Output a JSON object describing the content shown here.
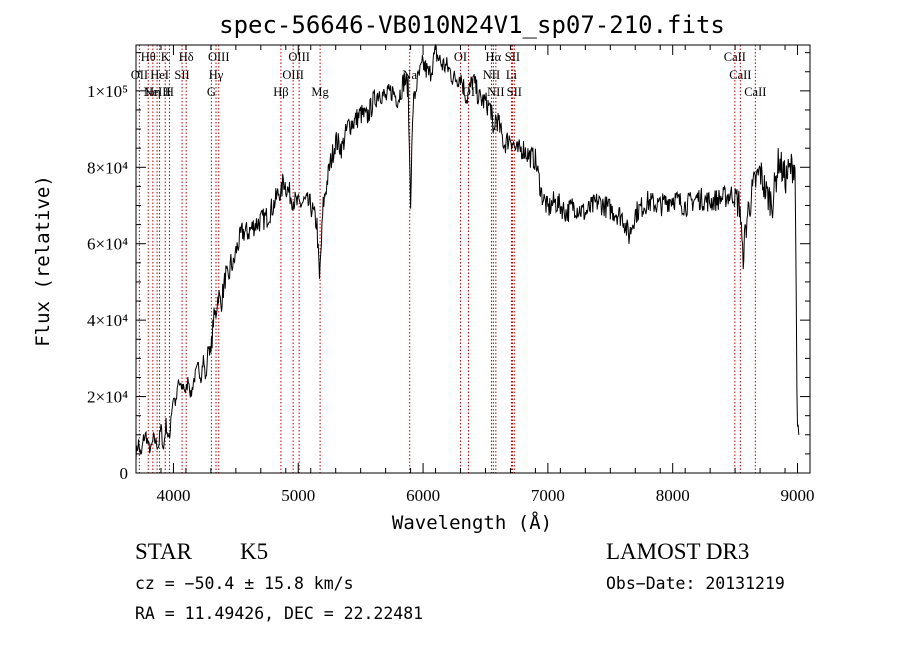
{
  "chart_data": {
    "type": "line",
    "title": "spec-56646-VB010N24V1_sp07-210.fits",
    "xlabel": "Wavelength (Å)",
    "ylabel": "Flux (relative)",
    "xlim": [
      3700,
      9100
    ],
    "ylim": [
      0,
      112000
    ],
    "x_ticks": [
      {
        "value": 4000,
        "label": "4000"
      },
      {
        "value": 5000,
        "label": "5000"
      },
      {
        "value": 6000,
        "label": "6000"
      },
      {
        "value": 7000,
        "label": "7000"
      },
      {
        "value": 8000,
        "label": "8000"
      },
      {
        "value": 9000,
        "label": "9000"
      }
    ],
    "y_ticks": [
      {
        "value": 0,
        "label": "0"
      },
      {
        "value": 20000,
        "label": "2×10⁴"
      },
      {
        "value": 40000,
        "label": "4×10⁴"
      },
      {
        "value": 60000,
        "label": "6×10⁴"
      },
      {
        "value": 80000,
        "label": "8×10⁴"
      },
      {
        "value": 100000,
        "label": "1×10⁵"
      }
    ],
    "series": [
      {
        "name": "spectrum",
        "x": [
          3700,
          3720,
          3740,
          3760,
          3780,
          3800,
          3820,
          3840,
          3860,
          3880,
          3900,
          3920,
          3940,
          3960,
          3970,
          3980,
          4000,
          4020,
          4040,
          4060,
          4080,
          4100,
          4120,
          4140,
          4160,
          4180,
          4200,
          4220,
          4240,
          4260,
          4280,
          4300,
          4320,
          4340,
          4360,
          4380,
          4400,
          4420,
          4440,
          4460,
          4480,
          4500,
          4550,
          4600,
          4650,
          4700,
          4750,
          4800,
          4850,
          4860,
          4880,
          4900,
          4950,
          5000,
          5050,
          5100,
          5150,
          5170,
          5180,
          5200,
          5250,
          5300,
          5350,
          5400,
          5450,
          5500,
          5550,
          5600,
          5650,
          5700,
          5750,
          5800,
          5850,
          5880,
          5890,
          5900,
          5920,
          5950,
          6000,
          6050,
          6100,
          6150,
          6200,
          6250,
          6300,
          6350,
          6400,
          6450,
          6500,
          6550,
          6560,
          6580,
          6600,
          6650,
          6700,
          6750,
          6800,
          6850,
          6900,
          6950,
          7000,
          7050,
          7100,
          7150,
          7200,
          7300,
          7400,
          7500,
          7600,
          7650,
          7700,
          7800,
          7900,
          8000,
          8100,
          8200,
          8300,
          8400,
          8480,
          8500,
          8540,
          8560,
          8600,
          8650,
          8700,
          8750,
          8800,
          8850,
          8900,
          8950,
          8980,
          9000,
          9010
        ],
        "values": [
          5000,
          8000,
          4000,
          9000,
          10000,
          7000,
          6000,
          9000,
          8000,
          7000,
          12000,
          6000,
          13000,
          9000,
          9000,
          15000,
          20000,
          18000,
          24000,
          22000,
          23000,
          21000,
          25000,
          20000,
          24000,
          26000,
          28000,
          25000,
          30000,
          24000,
          34000,
          31000,
          40000,
          42000,
          47000,
          44000,
          48000,
          52000,
          50000,
          55000,
          54000,
          58000,
          63000,
          63000,
          65000,
          66000,
          67000,
          70000,
          74000,
          72000,
          77000,
          75000,
          72000,
          70000,
          71000,
          70000,
          65000,
          50000,
          57000,
          70000,
          80000,
          87000,
          85000,
          91000,
          92000,
          94000,
          93000,
          97000,
          100000,
          98000,
          100000,
          98000,
          103000,
          101000,
          85000,
          72000,
          96000,
          102000,
          107000,
          104000,
          110000,
          107000,
          106000,
          103000,
          104000,
          98000,
          103000,
          98000,
          97000,
          95000,
          87000,
          93000,
          92000,
          86000,
          88000,
          84000,
          85000,
          83000,
          82000,
          73000,
          69000,
          71000,
          70000,
          68000,
          70000,
          68000,
          71000,
          69000,
          67000,
          62000,
          68000,
          71000,
          70000,
          72000,
          70000,
          72000,
          71000,
          72000,
          73000,
          72000,
          70000,
          56000,
          68000,
          75000,
          79000,
          73000,
          71000,
          82000,
          77000,
          80000,
          81000,
          8000,
          10000
        ]
      }
    ],
    "emission_lines": [
      {
        "wl": 3727,
        "label": "OII",
        "row": 1
      },
      {
        "wl": 3798,
        "label": "Hθ",
        "row": 0
      },
      {
        "wl": 3835,
        "label": "Hη",
        "row": 2
      },
      {
        "wl": 3869,
        "label": "NeIII",
        "row": 2
      },
      {
        "wl": 3889,
        "label": "HeI",
        "row": 1
      },
      {
        "wl": 3934,
        "label": "K",
        "row": 0
      },
      {
        "wl": 3968,
        "label": "H",
        "row": 2
      },
      {
        "wl": 4069,
        "label": "SII",
        "row": 1
      },
      {
        "wl": 4102,
        "label": "Hδ",
        "row": 0
      },
      {
        "wl": 4304,
        "label": "G",
        "row": 2
      },
      {
        "wl": 4341,
        "label": "Hγ",
        "row": 1
      },
      {
        "wl": 4363,
        "label": "OIII",
        "row": 0
      },
      {
        "wl": 4861,
        "label": "Hβ",
        "row": 2
      },
      {
        "wl": 4959,
        "label": "OIII",
        "row": 1
      },
      {
        "wl": 5007,
        "label": "OIII",
        "row": 0
      },
      {
        "wl": 5175,
        "label": "Mg",
        "row": 2
      },
      {
        "wl": 5893,
        "label": "Na",
        "row": 1
      },
      {
        "wl": 6300,
        "label": "OI",
        "row": 0
      },
      {
        "wl": 6364,
        "label": "OI",
        "row": 2
      },
      {
        "wl": 6548,
        "label": "NII",
        "row": 1
      },
      {
        "wl": 6563,
        "label": "Hα",
        "row": 0
      },
      {
        "wl": 6583,
        "label": "NII",
        "row": 2
      },
      {
        "wl": 6708,
        "label": "Li",
        "row": 1
      },
      {
        "wl": 6716,
        "label": "SII",
        "row": 0
      },
      {
        "wl": 6731,
        "label": "SII",
        "row": 2
      },
      {
        "wl": 8498,
        "label": "CaII",
        "row": 0
      },
      {
        "wl": 8542,
        "label": "CaII",
        "row": 1
      },
      {
        "wl": 8662,
        "label": "CaII",
        "row": 2
      }
    ]
  },
  "info": {
    "class": "STAR",
    "subclass": "K5",
    "survey": "LAMOST DR3",
    "cz": "cz = −50.4 ± 15.8 km/s",
    "obs_date": "Obs−Date: 20131219",
    "coords": "RA =  11.49426, DEC =  22.22481"
  },
  "colors": {
    "spectrum": "#000000",
    "lines": "#c00000",
    "axes": "#000000"
  }
}
